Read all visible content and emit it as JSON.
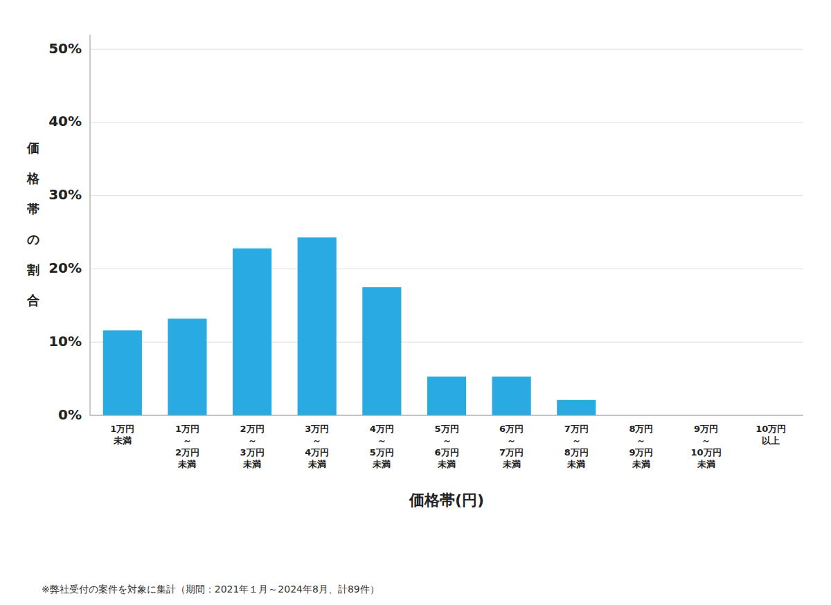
{
  "chart_data": {
    "type": "bar",
    "x_label": "価格帯(円)",
    "y_label": "価格帯の割合",
    "categories": [
      "1万円\n未満",
      "1万円\n～\n2万円\n未満",
      "2万円\n～\n3万円\n未満",
      "3万円\n～\n4万円\n未満",
      "4万円\n～\n5万円\n未満",
      "5万円\n～\n6万円\n未満",
      "6万円\n～\n7万円\n未満",
      "7万円\n～\n8万円\n未満",
      "8万円\n～\n9万円\n未満",
      "9万円\n～\n10万円\n未満",
      "10万円\n以上"
    ],
    "values": [
      0.116,
      0.132,
      0.228,
      0.243,
      0.175,
      0.053,
      0.053,
      0.021,
      0.0,
      0.0,
      0.0
    ],
    "color": "#29ABE2",
    "ylim": [
      0,
      0.52
    ],
    "yticks": [
      {
        "value": 0,
        "label": "0%"
      },
      {
        "value": 0.1,
        "label": "10%"
      },
      {
        "value": 0.2,
        "label": "20%"
      },
      {
        "value": 0.3,
        "label": "30%"
      },
      {
        "value": 0.4,
        "label": "40%"
      },
      {
        "value": 0.5,
        "label": "50%"
      }
    ],
    "grid": true,
    "annotations": [
      "※弊社受付の案件を対象に集計（期間：2021年１月～2024年8月、計89件）"
    ]
  }
}
